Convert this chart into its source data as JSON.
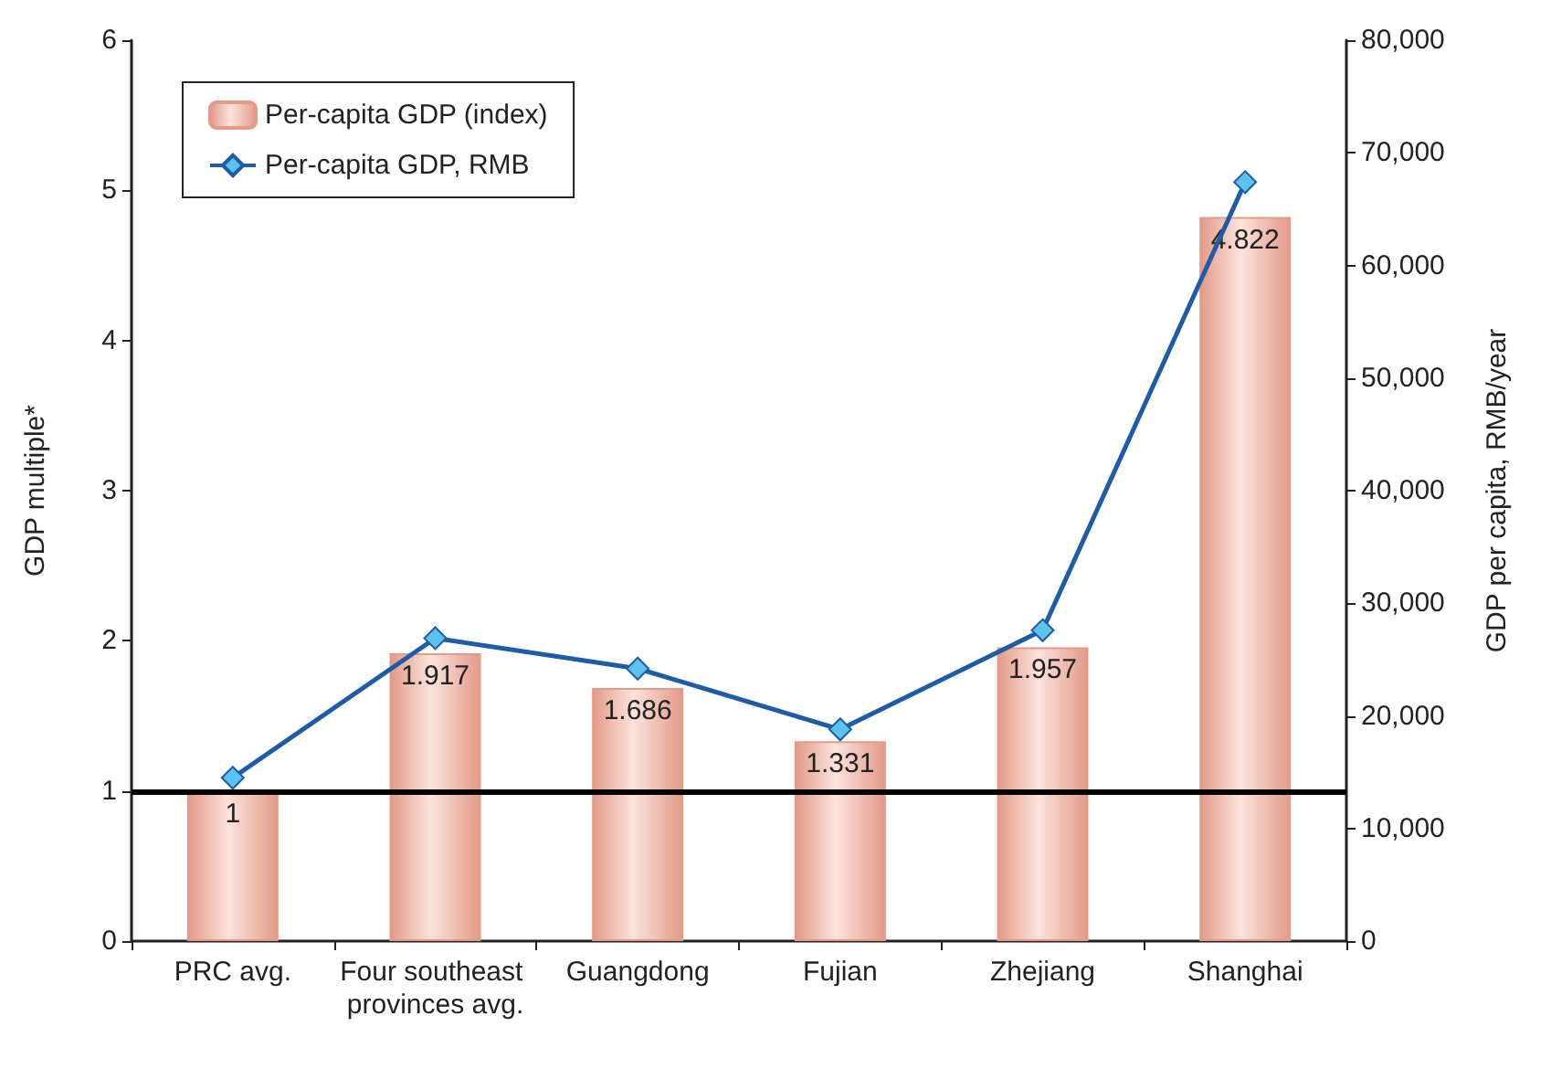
{
  "chart_data": {
    "type": "bar",
    "ylabel": "GDP multiple*",
    "y2label": "GDP per capita, RMB/year",
    "categories": [
      "PRC avg.",
      "Four southeast provinces avg.",
      "Guangdong",
      "Fujian",
      "Zhejiang",
      "Shanghai"
    ],
    "series": [
      {
        "name": "Per-capita GDP (index)",
        "color": "#e39a88",
        "values": [
          1,
          1.917,
          1.686,
          1.331,
          1.957,
          4.822
        ],
        "value_labels": [
          "1",
          "1.917",
          "1.686",
          "1.331",
          "1.957",
          "4.822"
        ]
      },
      {
        "name": "Per-capita GDP, RMB",
        "type": "line",
        "axis": "y2",
        "color": "#1f5ca8",
        "marker": "diamond",
        "values": [
          14500,
          26900,
          24200,
          18800,
          27600,
          67400
        ]
      }
    ],
    "ylim": [
      0,
      6
    ],
    "yticks": [
      0,
      1,
      2,
      3,
      4,
      5,
      6
    ],
    "y2lim": [
      0,
      80000
    ],
    "y2ticks": [
      0,
      {
        "value": 10000,
        "label": "10,000"
      },
      {
        "value": 20000,
        "label": "20,000"
      },
      {
        "value": 30000,
        "label": "30,000"
      },
      {
        "value": 40000,
        "label": "40,000"
      },
      {
        "value": 50000,
        "label": "50,000"
      },
      {
        "value": 60000,
        "label": "60,000"
      },
      {
        "value": 70000,
        "label": "70,000"
      },
      {
        "value": 80000,
        "label": "80,000"
      }
    ],
    "ref_lines": [
      {
        "axis": "y",
        "value": 1,
        "color": "#000000"
      }
    ],
    "legend": "top left",
    "grid": false
  }
}
